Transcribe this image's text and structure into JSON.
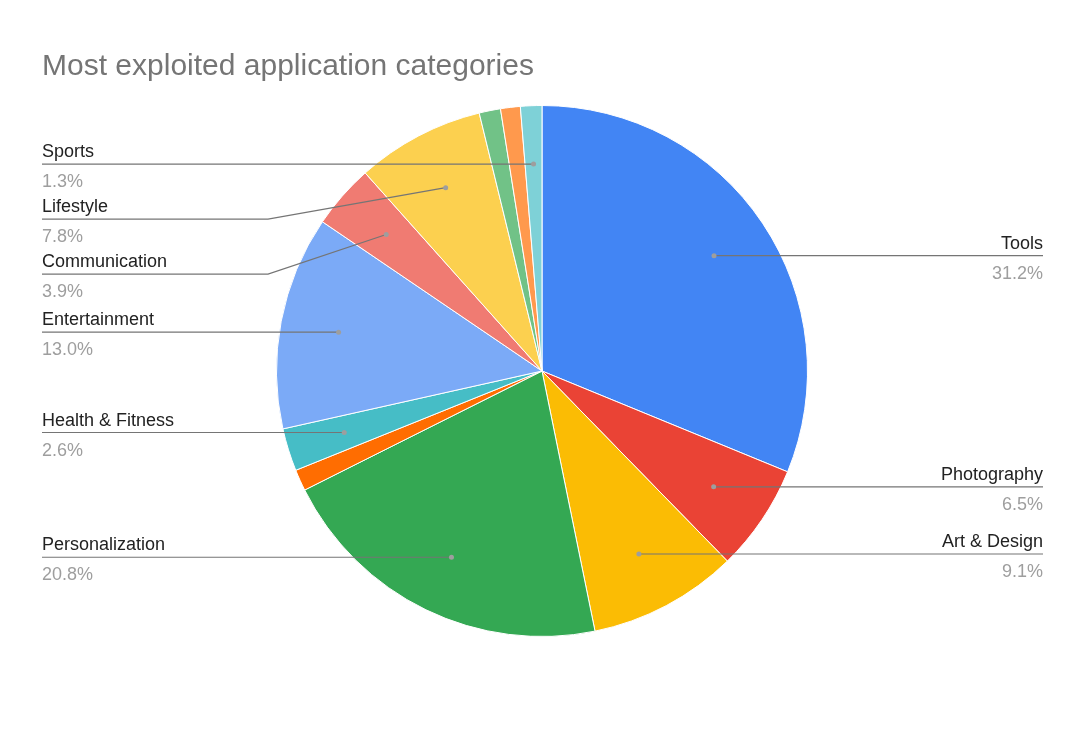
{
  "chart_data": {
    "type": "pie",
    "title": "Most exploited application categories",
    "categories": [
      "Tools",
      "Photography",
      "Art & Design",
      "Personalization",
      null,
      "Health & Fitness",
      "Entertainment",
      "Communication",
      "Lifestyle",
      null,
      null,
      "Sports"
    ],
    "values": [
      31.2,
      6.5,
      9.1,
      20.8,
      1.3,
      2.6,
      13.0,
      3.9,
      7.8,
      1.3,
      1.2,
      1.3
    ],
    "colors": [
      "#4285f4",
      "#ea4335",
      "#fbbc04",
      "#34a853",
      "#ff6d01",
      "#46bdc6",
      "#7baaf7",
      "#f07b72",
      "#fcd04f",
      "#71c287",
      "#ff994d",
      "#7ed1d7"
    ],
    "value_labels": [
      "31.2%",
      "6.5%",
      "9.1%",
      "20.8%",
      null,
      "2.6%",
      "13.0%",
      "3.9%",
      "7.8%",
      null,
      null,
      "1.3%"
    ],
    "legend": false
  }
}
